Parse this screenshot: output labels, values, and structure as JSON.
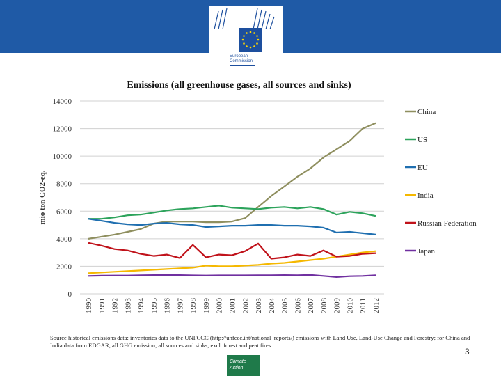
{
  "branding": {
    "org_line1": "European",
    "org_line2": "Commission",
    "flag_color": "#1d4f9e",
    "header_color": "#1f5aa6"
  },
  "footer": {
    "source_note": "Source historical emissions data: inventories data to the UNFCCC (http://unfccc.int/national_reports/) emissions with Land Use, Land-Use Change and Forestry; for China and India data from EDGAR, all GHG emission, all sources and sinks, excl. forest and peat fires",
    "page_number": "3",
    "badge_line1": "Climate",
    "badge_line2": "Action"
  },
  "chart_data": {
    "type": "line",
    "title": "Emissions (all greenhouse gases, all sources and sinks)",
    "ylabel": "mio ton CO2-eq.",
    "xlabel": "",
    "ylim": [
      0,
      14000
    ],
    "yticks": [
      0,
      2000,
      4000,
      6000,
      8000,
      10000,
      12000,
      14000
    ],
    "x": [
      "1990",
      "1991",
      "1992",
      "1993",
      "1994",
      "1995",
      "1996",
      "1997",
      "1998",
      "1999",
      "2000",
      "2001",
      "2002",
      "2003",
      "2004",
      "2005",
      "2006",
      "2007",
      "2008",
      "2009",
      "2010",
      "2011",
      "2012"
    ],
    "grid": true,
    "legend": "right",
    "series": [
      {
        "name": "China",
        "color": "#8f8f5f",
        "values": [
          4000,
          4150,
          4300,
          4500,
          4700,
          5100,
          5250,
          5250,
          5250,
          5200,
          5200,
          5250,
          5500,
          6300,
          7100,
          7800,
          8500,
          9100,
          9900,
          10500,
          11100,
          12000,
          12400
        ]
      },
      {
        "name": "US",
        "color": "#2ca35b",
        "values": [
          5450,
          5450,
          5550,
          5700,
          5750,
          5900,
          6050,
          6150,
          6200,
          6300,
          6400,
          6250,
          6200,
          6150,
          6250,
          6300,
          6200,
          6300,
          6150,
          5750,
          5950,
          5850,
          5650
        ]
      },
      {
        "name": "EU",
        "color": "#1f6fb0",
        "values": [
          5450,
          5300,
          5150,
          5050,
          5000,
          5100,
          5150,
          5050,
          5000,
          4850,
          4900,
          4950,
          4950,
          5000,
          5000,
          4950,
          4950,
          4900,
          4800,
          4450,
          4500,
          4400,
          4300
        ]
      },
      {
        "name": "India",
        "color": "#f5b800",
        "values": [
          1500,
          1550,
          1600,
          1650,
          1700,
          1750,
          1800,
          1850,
          1900,
          2050,
          2000,
          2000,
          2050,
          2100,
          2200,
          2250,
          2350,
          2450,
          2550,
          2700,
          2850,
          3000,
          3100
        ]
      },
      {
        "name": "Russian Federation",
        "color": "#c0121a",
        "values": [
          3700,
          3500,
          3250,
          3150,
          2900,
          2750,
          2850,
          2600,
          3550,
          2650,
          2850,
          2800,
          3100,
          3650,
          2550,
          2650,
          2850,
          2750,
          3150,
          2700,
          2750,
          2900,
          2950
        ]
      },
      {
        "name": "Japan",
        "color": "#7030a0",
        "values": [
          1300,
          1320,
          1330,
          1330,
          1350,
          1360,
          1370,
          1360,
          1340,
          1330,
          1340,
          1340,
          1340,
          1350,
          1350,
          1360,
          1350,
          1370,
          1300,
          1220,
          1280,
          1300,
          1350
        ]
      }
    ]
  }
}
